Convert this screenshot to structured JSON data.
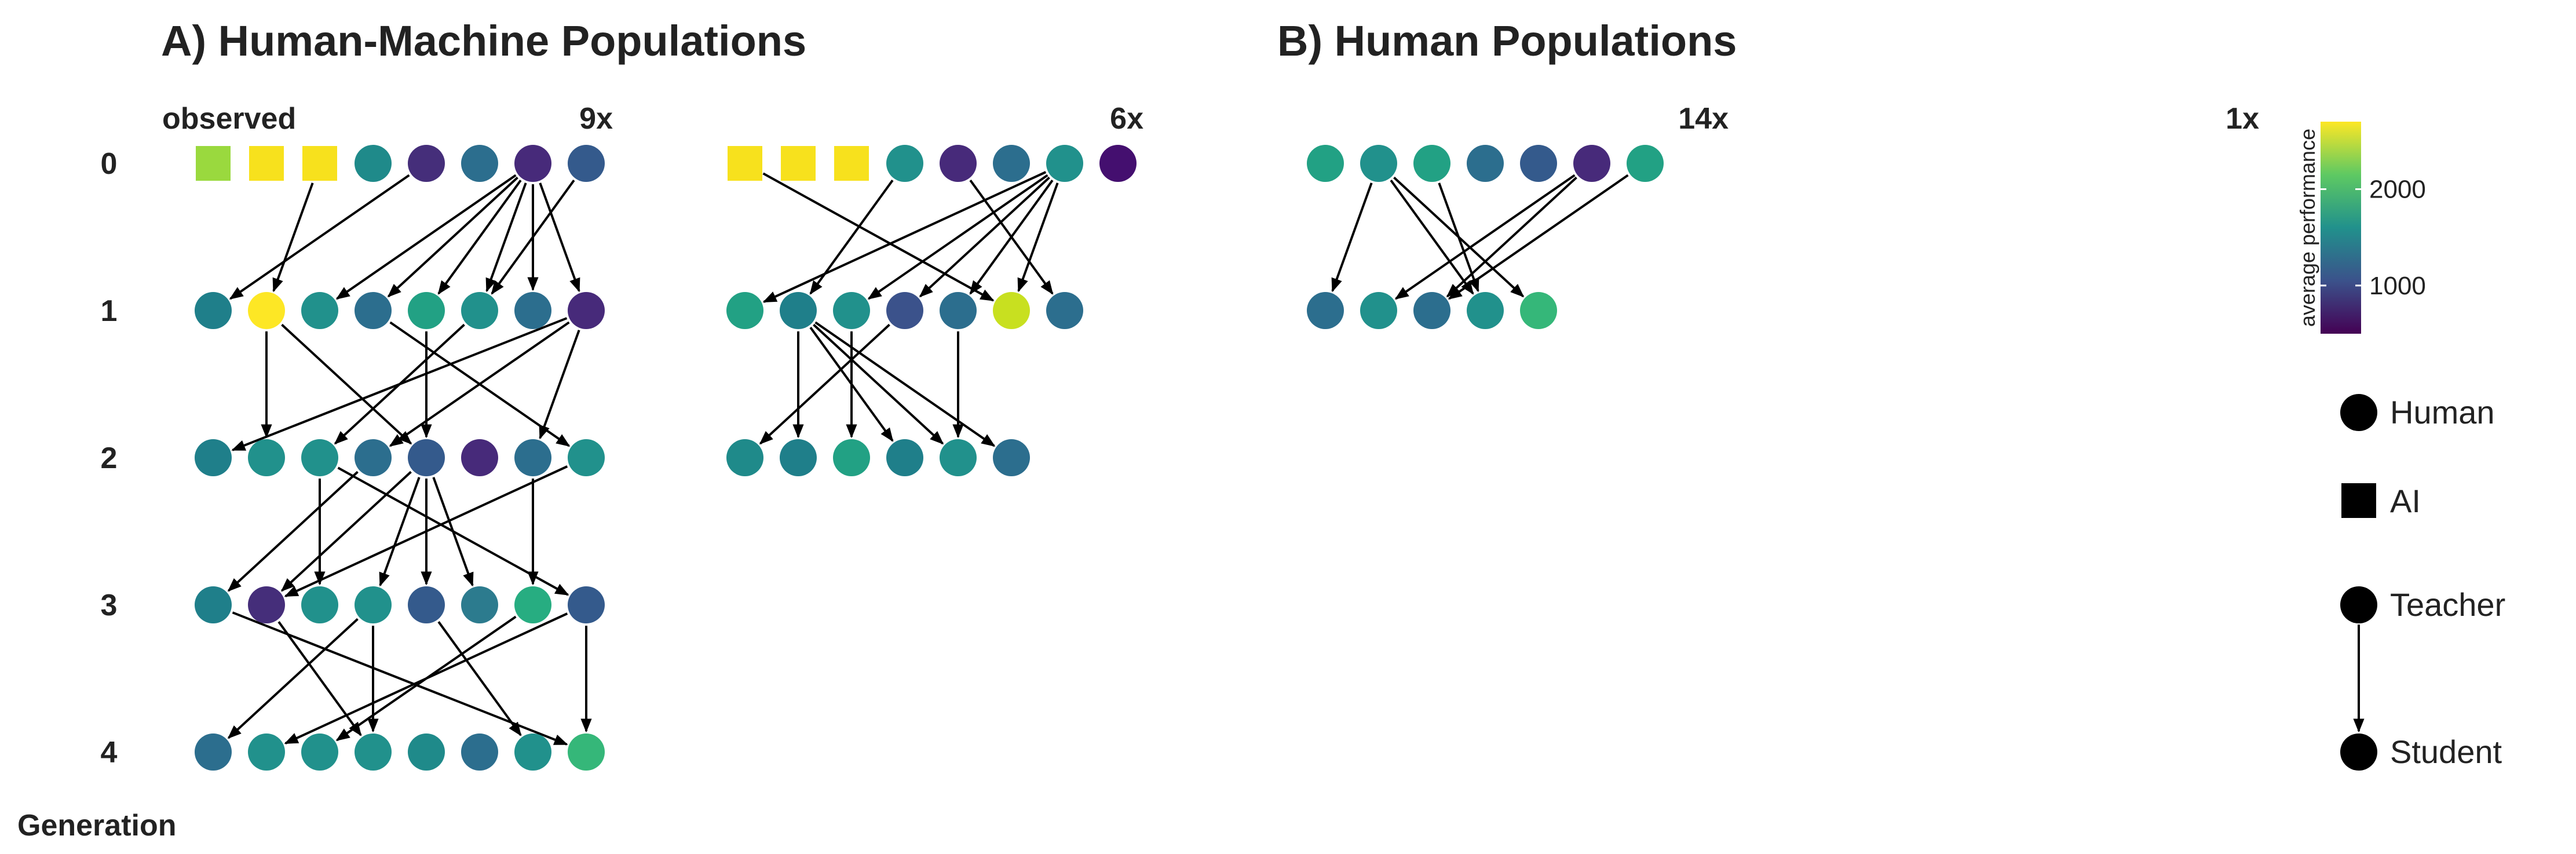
{
  "panels": [
    {
      "title": "A) Human-Machine Populations",
      "groups": [
        {
          "id": "A1",
          "label_left": "observed",
          "label_right": "9x",
          "nodes": [
            [
              {
                "shape": "square",
                "color": "#9ad93e"
              },
              {
                "shape": "square",
                "color": "#f7e11d"
              },
              {
                "shape": "square",
                "color": "#f7e11d"
              },
              {
                "shape": "circle",
                "color": "#1f8a8a"
              },
              {
                "shape": "circle",
                "color": "#452e7a"
              },
              {
                "shape": "circle",
                "color": "#2c6e8e"
              },
              {
                "shape": "circle",
                "color": "#472a7a"
              },
              {
                "shape": "circle",
                "color": "#345a8c"
              }
            ],
            [
              {
                "shape": "circle",
                "color": "#1f7f8a"
              },
              {
                "shape": "circle",
                "color": "#fde725"
              },
              {
                "shape": "circle",
                "color": "#21918c"
              },
              {
                "shape": "circle",
                "color": "#2c6e8e"
              },
              {
                "shape": "circle",
                "color": "#22a184"
              },
              {
                "shape": "circle",
                "color": "#21918c"
              },
              {
                "shape": "circle",
                "color": "#2c6e8e"
              },
              {
                "shape": "circle",
                "color": "#472a7a"
              }
            ],
            [
              {
                "shape": "circle",
                "color": "#1f7f8a"
              },
              {
                "shape": "circle",
                "color": "#21918c"
              },
              {
                "shape": "circle",
                "color": "#21918c"
              },
              {
                "shape": "circle",
                "color": "#2c6e8e"
              },
              {
                "shape": "circle",
                "color": "#345a8c"
              },
              {
                "shape": "circle",
                "color": "#472a7a"
              },
              {
                "shape": "circle",
                "color": "#2c6e8e"
              },
              {
                "shape": "circle",
                "color": "#21918c"
              }
            ],
            [
              {
                "shape": "circle",
                "color": "#1f7f8a"
              },
              {
                "shape": "circle",
                "color": "#452e7a"
              },
              {
                "shape": "circle",
                "color": "#21918c"
              },
              {
                "shape": "circle",
                "color": "#21918c"
              },
              {
                "shape": "circle",
                "color": "#345a8c"
              },
              {
                "shape": "circle",
                "color": "#2c7b8e"
              },
              {
                "shape": "circle",
                "color": "#27ad81"
              },
              {
                "shape": "circle",
                "color": "#345a8c"
              }
            ],
            [
              {
                "shape": "circle",
                "color": "#2c6e8e"
              },
              {
                "shape": "circle",
                "color": "#21918c"
              },
              {
                "shape": "circle",
                "color": "#21918c"
              },
              {
                "shape": "circle",
                "color": "#21918c"
              },
              {
                "shape": "circle",
                "color": "#1f8a8a"
              },
              {
                "shape": "circle",
                "color": "#2c6e8e"
              },
              {
                "shape": "circle",
                "color": "#21918c"
              },
              {
                "shape": "circle",
                "color": "#35b779"
              }
            ]
          ],
          "edges": [
            [
              0,
              2,
              1,
              1
            ],
            [
              0,
              4,
              1,
              0
            ],
            [
              0,
              6,
              1,
              2
            ],
            [
              0,
              6,
              1,
              3
            ],
            [
              0,
              6,
              1,
              4
            ],
            [
              0,
              6,
              1,
              5
            ],
            [
              0,
              6,
              1,
              6
            ],
            [
              0,
              6,
              1,
              7
            ],
            [
              0,
              7,
              1,
              5
            ],
            [
              1,
              1,
              2,
              1
            ],
            [
              1,
              1,
              2,
              4
            ],
            [
              1,
              4,
              2,
              4
            ],
            [
              1,
              3,
              2,
              7
            ],
            [
              1,
              7,
              2,
              0
            ],
            [
              1,
              7,
              2,
              3
            ],
            [
              1,
              7,
              2,
              6
            ],
            [
              1,
              5,
              2,
              2
            ],
            [
              2,
              2,
              3,
              2
            ],
            [
              2,
              3,
              3,
              0
            ],
            [
              2,
              4,
              3,
              1
            ],
            [
              2,
              4,
              3,
              3
            ],
            [
              2,
              4,
              3,
              4
            ],
            [
              2,
              4,
              3,
              5
            ],
            [
              2,
              2,
              3,
              7
            ],
            [
              2,
              6,
              3,
              6
            ],
            [
              2,
              7,
              3,
              1
            ],
            [
              3,
              0,
              4,
              7
            ],
            [
              3,
              1,
              4,
              3
            ],
            [
              3,
              3,
              4,
              0
            ],
            [
              3,
              3,
              4,
              3
            ],
            [
              3,
              4,
              4,
              6
            ],
            [
              3,
              6,
              4,
              2
            ],
            [
              3,
              7,
              4,
              1
            ],
            [
              3,
              7,
              4,
              7
            ]
          ]
        },
        {
          "id": "A2",
          "label_left": "",
          "label_right": "6x",
          "nodes": [
            [
              {
                "shape": "square",
                "color": "#f7e11d"
              },
              {
                "shape": "square",
                "color": "#f7e11d"
              },
              {
                "shape": "square",
                "color": "#f7e11d"
              },
              {
                "shape": "circle",
                "color": "#21918c"
              },
              {
                "shape": "circle",
                "color": "#472a7a"
              },
              {
                "shape": "circle",
                "color": "#2c6e8e"
              },
              {
                "shape": "circle",
                "color": "#21918c"
              },
              {
                "shape": "circle",
                "color": "#440f6f"
              }
            ],
            [
              {
                "shape": "circle",
                "color": "#22a184"
              },
              {
                "shape": "circle",
                "color": "#1f7f8a"
              },
              {
                "shape": "circle",
                "color": "#21918c"
              },
              {
                "shape": "circle",
                "color": "#3b528b"
              },
              {
                "shape": "circle",
                "color": "#2c6e8e"
              },
              {
                "shape": "circle",
                "color": "#c8e020"
              },
              {
                "shape": "circle",
                "color": "#2c6e8e"
              }
            ],
            [
              {
                "shape": "circle",
                "color": "#1f8a8a"
              },
              {
                "shape": "circle",
                "color": "#1f7f8a"
              },
              {
                "shape": "circle",
                "color": "#22a184"
              },
              {
                "shape": "circle",
                "color": "#1f7f8a"
              },
              {
                "shape": "circle",
                "color": "#21918c"
              },
              {
                "shape": "circle",
                "color": "#2c6e8e"
              }
            ]
          ],
          "edges": [
            [
              0,
              0,
              1,
              5
            ],
            [
              0,
              3,
              1,
              1
            ],
            [
              0,
              4,
              1,
              6
            ],
            [
              0,
              6,
              1,
              0
            ],
            [
              0,
              6,
              1,
              2
            ],
            [
              0,
              6,
              1,
              3
            ],
            [
              0,
              6,
              1,
              4
            ],
            [
              0,
              6,
              1,
              5
            ],
            [
              1,
              1,
              2,
              1
            ],
            [
              1,
              1,
              2,
              3
            ],
            [
              1,
              1,
              2,
              4
            ],
            [
              1,
              1,
              2,
              5
            ],
            [
              1,
              2,
              2,
              2
            ],
            [
              1,
              3,
              2,
              0
            ],
            [
              1,
              4,
              2,
              4
            ]
          ]
        }
      ]
    },
    {
      "title": "B) Human Populations",
      "groups": [
        {
          "id": "B1",
          "label_left": "",
          "label_right": "14x",
          "nodes": [
            [
              {
                "shape": "circle",
                "color": "#22a184"
              },
              {
                "shape": "circle",
                "color": "#21918c"
              },
              {
                "shape": "circle",
                "color": "#22a184"
              },
              {
                "shape": "circle",
                "color": "#2c6e8e"
              },
              {
                "shape": "circle",
                "color": "#345a8c"
              },
              {
                "shape": "circle",
                "color": "#472a7a"
              },
              {
                "shape": "circle",
                "color": "#22a184"
              }
            ],
            [
              {
                "shape": "circle",
                "color": "#2c6e8e"
              },
              {
                "shape": "circle",
                "color": "#21918c"
              },
              {
                "shape": "circle",
                "color": "#2c6e8e"
              },
              {
                "shape": "circle",
                "color": "#21918c"
              },
              {
                "shape": "circle",
                "color": "#35b779"
              }
            ]
          ],
          "edges": [
            [
              0,
              1,
              1,
              0
            ],
            [
              0,
              1,
              1,
              3
            ],
            [
              0,
              1,
              1,
              4
            ],
            [
              0,
              2,
              1,
              3
            ],
            [
              0,
              5,
              1,
              1
            ],
            [
              0,
              5,
              1,
              2
            ],
            [
              0,
              6,
              1,
              2
            ]
          ]
        },
        {
          "id": "B2",
          "label_left": "",
          "label_right": "1x",
          "nodes": [],
          "edges": []
        }
      ]
    }
  ],
  "generation_axis": {
    "title": "Generation",
    "labels": [
      "0",
      "1",
      "2",
      "3",
      "4"
    ]
  },
  "colorbar": {
    "title": "average performance",
    "ticks": [
      {
        "label": "2000",
        "value": 2000
      },
      {
        "label": "1000",
        "value": 1000
      }
    ],
    "range": [
      500,
      2700
    ],
    "colors": [
      "#440154",
      "#3b528b",
      "#21918c",
      "#5ec962",
      "#fde725"
    ]
  },
  "legend": {
    "human": "Human",
    "ai": "AI",
    "teacher": "Teacher",
    "student": "Student"
  }
}
